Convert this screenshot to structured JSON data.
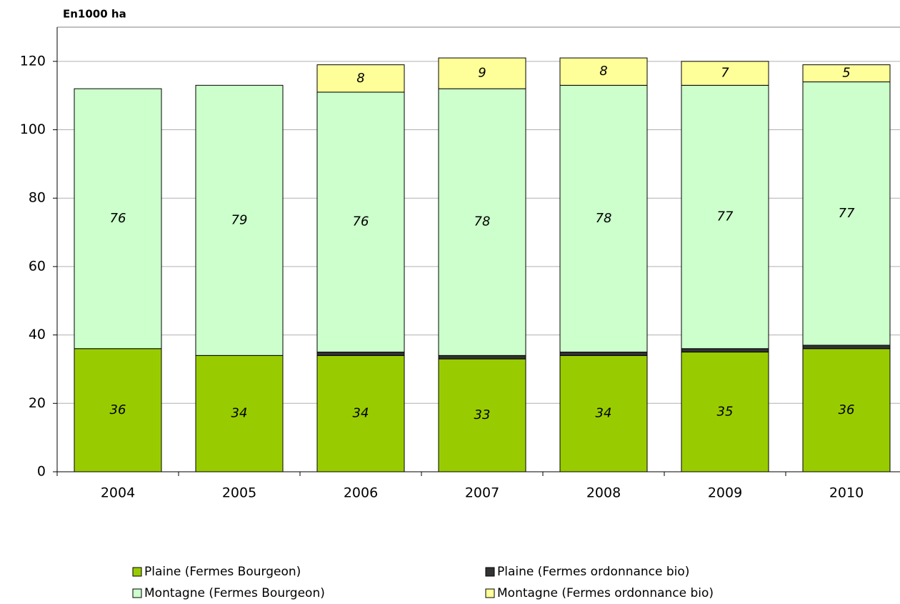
{
  "chart_data": {
    "type": "stacked_bar",
    "ylabel": "En1000 ha",
    "categories": [
      "2004",
      "2005",
      "2006",
      "2007",
      "2008",
      "2009",
      "2010"
    ],
    "series": [
      {
        "name": "Plaine (Fermes Bourgeon)",
        "color": "#99cc00",
        "values": [
          36,
          34,
          34,
          33,
          34,
          35,
          36
        ]
      },
      {
        "name": "Plaine (Fermes ordonnance bio)",
        "color": "#333333",
        "values": [
          null,
          null,
          1,
          1,
          1,
          1,
          1
        ]
      },
      {
        "name": "Montagne (Fermes Bourgeon)",
        "color": "#ccffcc",
        "values": [
          76,
          79,
          76,
          78,
          78,
          77,
          77
        ]
      },
      {
        "name": "Montagne (Fermes ordonnance bio)",
        "color": "#ffff99",
        "values": [
          null,
          null,
          8,
          9,
          8,
          7,
          5
        ]
      }
    ],
    "ylim": [
      0,
      130
    ],
    "yticks": [
      0,
      20,
      40,
      60,
      80,
      100,
      120
    ],
    "grid": true
  }
}
